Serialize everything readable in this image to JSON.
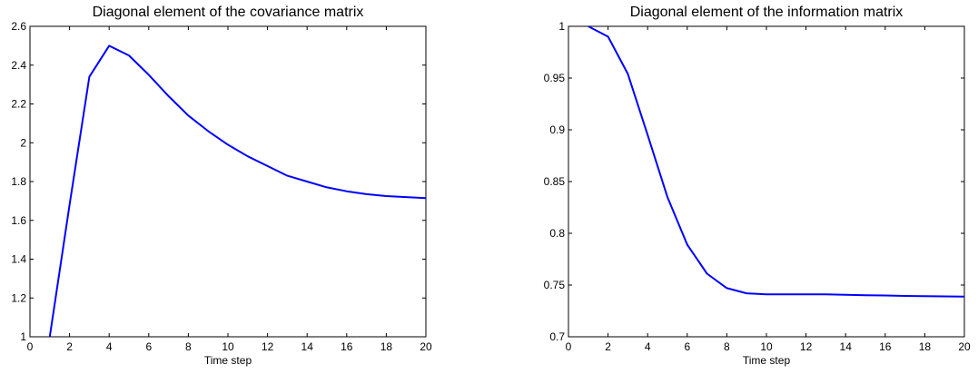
{
  "chart_data": [
    {
      "type": "line",
      "title": "Diagonal element of the covariance matrix",
      "xlabel": "Time step",
      "ylabel": "",
      "xlim": [
        0,
        20
      ],
      "ylim": [
        1,
        2.6
      ],
      "xticks": [
        "0",
        "2",
        "4",
        "6",
        "8",
        "10",
        "12",
        "14",
        "16",
        "18",
        "20"
      ],
      "yticks": [
        "1",
        "1.2",
        "1.4",
        "1.6",
        "1.8",
        "2",
        "2.2",
        "2.4",
        "2.6"
      ],
      "grid": false,
      "line_color": "#0000ff",
      "series": [
        {
          "x": [
            1,
            2,
            3,
            4,
            5,
            6,
            7,
            8,
            9,
            10,
            11,
            12,
            13,
            14,
            15,
            16,
            17,
            18,
            19,
            20
          ],
          "values": [
            1.0,
            1.68,
            2.34,
            2.5,
            2.45,
            2.35,
            2.24,
            2.14,
            2.06,
            1.99,
            1.93,
            1.88,
            1.83,
            1.8,
            1.77,
            1.75,
            1.735,
            1.725,
            1.72,
            1.715
          ]
        }
      ]
    },
    {
      "type": "line",
      "title": "Diagonal element of the information matrix",
      "xlabel": "Time step",
      "ylabel": "",
      "xlim": [
        0,
        20
      ],
      "ylim": [
        0.7,
        1
      ],
      "xticks": [
        "0",
        "2",
        "4",
        "6",
        "8",
        "10",
        "12",
        "14",
        "16",
        "18",
        "20"
      ],
      "yticks": [
        "0.7",
        "0.75",
        "0.8",
        "0.85",
        "0.9",
        "0.95",
        "1"
      ],
      "grid": false,
      "line_color": "#0000ff",
      "series": [
        {
          "x": [
            1,
            2,
            3,
            4,
            5,
            6,
            7,
            8,
            9,
            10,
            11,
            12,
            13,
            14,
            15,
            16,
            17,
            18,
            19,
            20
          ],
          "values": [
            1.0,
            0.99,
            0.954,
            0.895,
            0.835,
            0.789,
            0.761,
            0.747,
            0.742,
            0.741,
            0.741,
            0.741,
            0.741,
            0.7405,
            0.7402,
            0.7399,
            0.7395,
            0.7392,
            0.739,
            0.7388
          ]
        }
      ]
    }
  ]
}
